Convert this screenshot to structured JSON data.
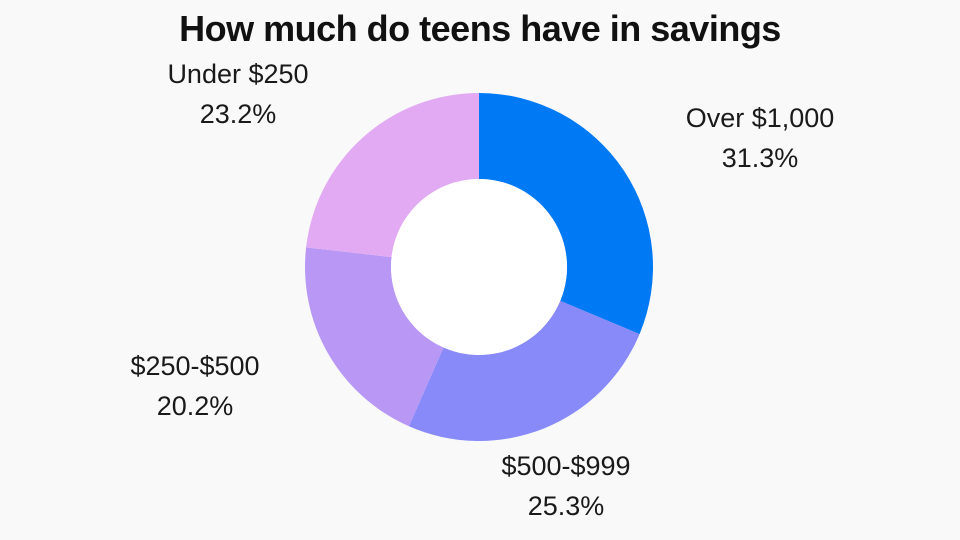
{
  "chart_data": {
    "type": "pie",
    "title": "How much do teens have in savings",
    "slices": [
      {
        "label": "Over $1,000",
        "value": 31.3,
        "value_text": "31.3%",
        "color": "#0079f5"
      },
      {
        "label": "$500-$999",
        "value": 25.3,
        "value_text": "25.3%",
        "color": "#878af8"
      },
      {
        "label": "$250-$500",
        "value": 20.2,
        "value_text": "20.2%",
        "color": "#b897f5"
      },
      {
        "label": "Under $250",
        "value": 23.2,
        "value_text": "23.2%",
        "color": "#e2aaf2"
      }
    ],
    "start_angle_deg": 0,
    "direction": "clockwise",
    "donut": true,
    "legend": "none"
  }
}
